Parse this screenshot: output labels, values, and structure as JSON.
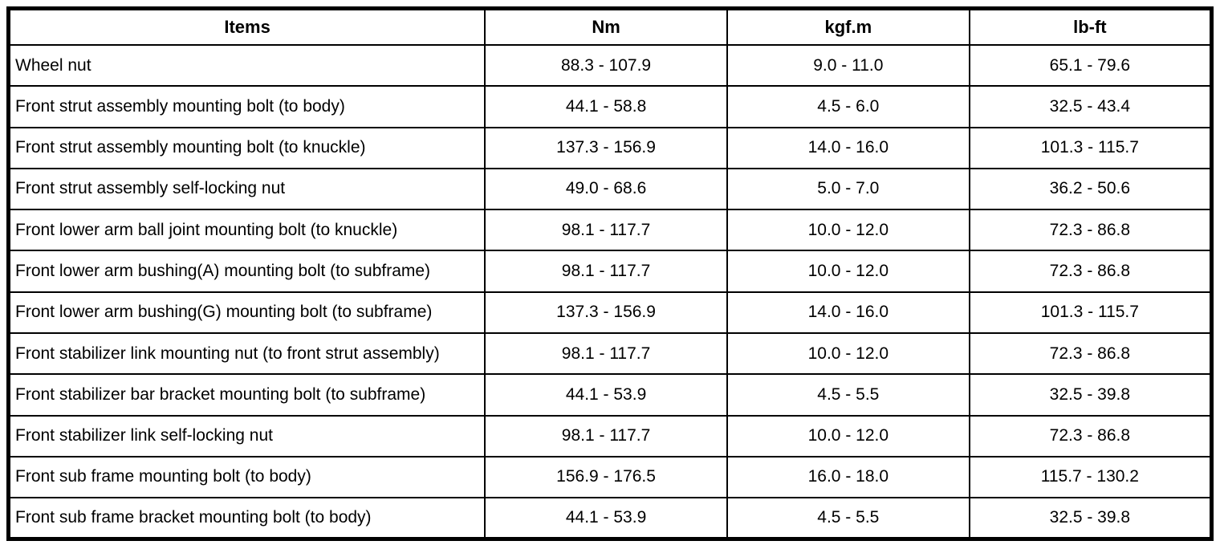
{
  "table": {
    "headers": [
      "Items",
      "Nm",
      "kgf.m",
      "lb-ft"
    ],
    "rows": [
      {
        "item": "Wheel nut",
        "nm": "88.3 - 107.9",
        "kgfm": "9.0 - 11.0",
        "lbft": "65.1 - 79.6"
      },
      {
        "item": "Front strut assembly mounting bolt (to body)",
        "nm": "44.1 - 58.8",
        "kgfm": "4.5 - 6.0",
        "lbft": "32.5 - 43.4"
      },
      {
        "item": "Front strut assembly mounting bolt (to knuckle)",
        "nm": "137.3 - 156.9",
        "kgfm": "14.0 - 16.0",
        "lbft": "101.3 - 115.7"
      },
      {
        "item": "Front strut assembly self-locking nut",
        "nm": "49.0 - 68.6",
        "kgfm": "5.0 - 7.0",
        "lbft": "36.2 - 50.6"
      },
      {
        "item": "Front lower arm ball joint mounting bolt (to knuckle)",
        "nm": "98.1 - 117.7",
        "kgfm": "10.0 - 12.0",
        "lbft": "72.3 - 86.8"
      },
      {
        "item": "Front lower arm bushing(A) mounting bolt (to subframe)",
        "nm": "98.1 - 117.7",
        "kgfm": "10.0 - 12.0",
        "lbft": "72.3 - 86.8"
      },
      {
        "item": "Front lower arm bushing(G) mounting bolt (to subframe)",
        "nm": "137.3 - 156.9",
        "kgfm": "14.0 - 16.0",
        "lbft": "101.3 - 115.7"
      },
      {
        "item": "Front stabilizer link mounting nut (to front strut assembly)",
        "nm": "98.1 - 117.7",
        "kgfm": "10.0 - 12.0",
        "lbft": "72.3 - 86.8"
      },
      {
        "item": "Front stabilizer bar bracket mounting bolt (to subframe)",
        "nm": "44.1 - 53.9",
        "kgfm": "4.5 - 5.5",
        "lbft": "32.5 - 39.8"
      },
      {
        "item": "Front stabilizer link self-locking nut",
        "nm": "98.1 - 117.7",
        "kgfm": "10.0 - 12.0",
        "lbft": "72.3 - 86.8"
      },
      {
        "item": "Front sub frame mounting bolt (to body)",
        "nm": "156.9 - 176.5",
        "kgfm": "16.0 - 18.0",
        "lbft": "115.7 - 130.2"
      },
      {
        "item": "Front sub frame bracket mounting bolt (to body)",
        "nm": "44.1 - 53.9",
        "kgfm": "4.5 - 5.5",
        "lbft": "32.5 - 39.8"
      }
    ]
  },
  "colors": {
    "border": "#000000",
    "background": "#ffffff",
    "text": "#000000"
  }
}
